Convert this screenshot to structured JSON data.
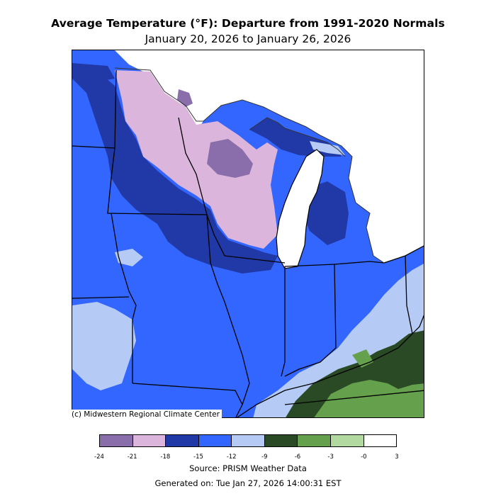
{
  "header": {
    "title": "Average Temperature (°F): Departure from 1991-2020 Normals",
    "subtitle": "January 20, 2026 to January 26, 2026"
  },
  "map": {
    "copyright": "(c) Midwestern Regional Climate Center"
  },
  "legend": {
    "bins": [
      {
        "range": [
          -24,
          -21
        ],
        "color": "#8a6eab"
      },
      {
        "range": [
          -21,
          -18
        ],
        "color": "#dbb5db"
      },
      {
        "range": [
          -18,
          -15
        ],
        "color": "#2139a6"
      },
      {
        "range": [
          -15,
          -12
        ],
        "color": "#3366ff"
      },
      {
        "range": [
          -12,
          -9
        ],
        "color": "#b5cbf6"
      },
      {
        "range": [
          -9,
          -6
        ],
        "color": "#2a4a26"
      },
      {
        "range": [
          -6,
          -3
        ],
        "color": "#65a04c"
      },
      {
        "range": [
          -3,
          0
        ],
        "color": "#b2d99f"
      },
      {
        "range": [
          0,
          3
        ],
        "color": "#ffffff"
      }
    ],
    "tick_labels": [
      "-24",
      "-21",
      "-18",
      "-15",
      "-12",
      "-9",
      "-6",
      "-3",
      "-0",
      "3"
    ]
  },
  "footer": {
    "source": "Source: PRISM Weather Data",
    "generated": "Generated on: Tue Jan 27, 2026 14:00:31 EST"
  }
}
